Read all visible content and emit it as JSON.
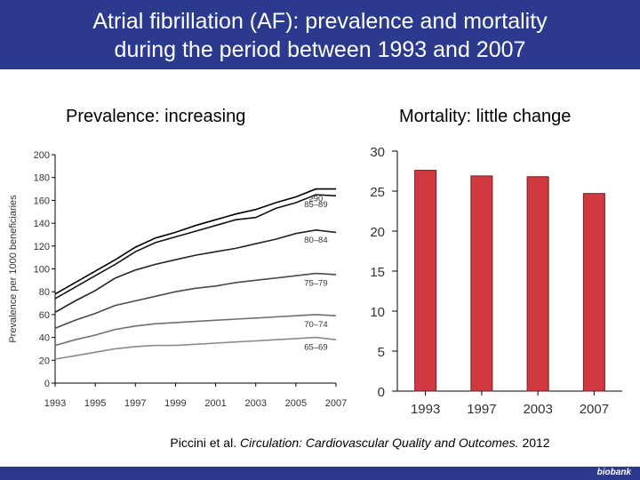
{
  "title_line1": "Atrial fibrillation (AF): prevalence and mortality",
  "title_line2": "during the period between 1993 and 2007",
  "subtitle_left": "Prevalence: increasing",
  "subtitle_right": "Mortality: little change",
  "citation": {
    "authors": "Piccini et al. ",
    "journal": "Circulation: Cardiovascular Quality and Outcomes.",
    "year": " 2012"
  },
  "footer_logo": "biobank",
  "colors": {
    "header": "#2b3a8c",
    "bar_fill": "#d0393f",
    "bar_stroke": "#7a1a1e",
    "line": "#000000"
  },
  "chart_data": [
    {
      "type": "line",
      "ylabel": "Prevalence per 1000 beneficiaries",
      "xlabel": "",
      "ylim": [
        0,
        200
      ],
      "xlim": [
        1993,
        2007
      ],
      "yticks": [
        0,
        20,
        40,
        60,
        80,
        100,
        120,
        140,
        160,
        180,
        200
      ],
      "xticks": [
        1993,
        1995,
        1997,
        1999,
        2001,
        2003,
        2005,
        2007
      ],
      "x": [
        1993,
        1994,
        1995,
        1996,
        1997,
        1998,
        1999,
        2000,
        2001,
        2002,
        2003,
        2004,
        2005,
        2006,
        2007
      ],
      "series": [
        {
          "name": "65–69",
          "values": [
            21,
            24,
            27,
            30,
            32,
            33,
            33,
            34,
            35,
            36,
            37,
            38,
            39,
            40,
            38
          ]
        },
        {
          "name": "70–74",
          "values": [
            33,
            38,
            42,
            47,
            50,
            52,
            53,
            54,
            55,
            56,
            57,
            58,
            59,
            60,
            59
          ]
        },
        {
          "name": "75–79",
          "values": [
            48,
            55,
            61,
            68,
            72,
            76,
            80,
            83,
            85,
            88,
            90,
            92,
            94,
            96,
            95
          ]
        },
        {
          "name": "80–84",
          "values": [
            62,
            72,
            81,
            92,
            99,
            104,
            108,
            112,
            115,
            118,
            122,
            126,
            131,
            134,
            132
          ]
        },
        {
          "name": "85–89",
          "values": [
            74,
            84,
            94,
            104,
            115,
            123,
            128,
            133,
            138,
            143,
            145,
            153,
            158,
            165,
            164
          ]
        },
        {
          "name": "≥90",
          "values": [
            78,
            88,
            98,
            108,
            119,
            127,
            132,
            138,
            143,
            148,
            152,
            158,
            163,
            170,
            170
          ]
        }
      ]
    },
    {
      "type": "bar",
      "categories": [
        "1993",
        "1997",
        "2003",
        "2007"
      ],
      "values": [
        27.6,
        26.9,
        26.8,
        24.7
      ],
      "ylim": [
        0,
        30
      ],
      "yticks": [
        0,
        5,
        10,
        15,
        20,
        25,
        30
      ],
      "xlabel": "",
      "ylabel": ""
    }
  ]
}
